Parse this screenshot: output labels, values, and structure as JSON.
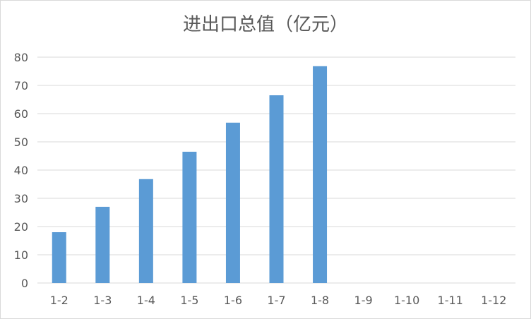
{
  "chart_data": {
    "type": "bar",
    "title": "进出口总值（亿元）",
    "categories": [
      "1-2",
      "1-3",
      "1-4",
      "1-5",
      "1-6",
      "1-7",
      "1-8",
      "1-9",
      "1-10",
      "1-11",
      "1-12"
    ],
    "values": [
      18,
      27,
      36.8,
      46.5,
      56.8,
      66.5,
      76.8,
      null,
      null,
      null,
      null
    ],
    "xlabel": "",
    "ylabel": "",
    "ylim": [
      0,
      80
    ],
    "yticks": [
      0,
      10,
      20,
      30,
      40,
      50,
      60,
      70,
      80
    ],
    "grid": true,
    "legend": "none",
    "bar_color": "#5b9bd5",
    "grid_color": "#d9d9d9"
  }
}
